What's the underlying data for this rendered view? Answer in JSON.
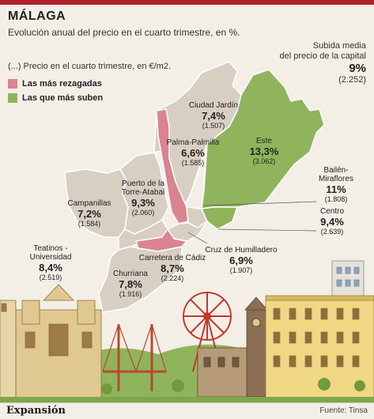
{
  "header": {
    "title": "MÁLAGA",
    "subtitle": "Evolución anual del precio en el cuarto trimestre, en %."
  },
  "subida": {
    "line1": "Subida media",
    "line2": "del precio de la capital",
    "value": "9%",
    "price": "(2.252)"
  },
  "unit_note": "(...) Precio en el cuarto trimestre, en €/m2.",
  "legend": {
    "rezagadas": "Las más rezagadas",
    "suben": "Las que más suben"
  },
  "colors": {
    "rezagadas": "#d9848f",
    "suben": "#8fb45c",
    "neutral": "#d8cfc2",
    "background": "#f3efe7"
  },
  "districts": {
    "ciudad_jardin": {
      "name": "Ciudad Jardín",
      "pct": "7,4%",
      "price": "(1.507)"
    },
    "palma_palmilla": {
      "name": "Palma-Palmilla",
      "pct": "6,6%",
      "price": "(1.585)"
    },
    "este": {
      "name": "Este",
      "pct": "13,3%",
      "price": "(3.062)"
    },
    "puerto_torre": {
      "name1": "Puerto de la",
      "name2": "Torre-Atabal",
      "pct": "9,3%",
      "price": "(2.060)"
    },
    "campanillas": {
      "name": "Campanillas",
      "pct": "7,2%",
      "price": "(1.584)"
    },
    "bailen": {
      "name1": "Bailén-",
      "name2": "Miraflores",
      "pct": "11%",
      "price": "(1.808)"
    },
    "centro": {
      "name": "Centro",
      "pct": "9,4%",
      "price": "(2.639)"
    },
    "teatinos": {
      "name1": "Teatinos -",
      "name2": "Universidad",
      "pct": "8,4%",
      "price": "(2.519)"
    },
    "carretera_cadiz": {
      "name": "Carretera de Cádiz",
      "pct": "8,7%",
      "price": "(2.224)"
    },
    "cruz_humilladero": {
      "name": "Cruz de Humilladero",
      "pct": "6,9%",
      "price": "(1.907)"
    },
    "churriana": {
      "name": "Churriana",
      "pct": "7,8%",
      "price": "(1.916)"
    }
  },
  "footer": {
    "brand": "Expansión",
    "source": "Fuente: Tinsa"
  }
}
